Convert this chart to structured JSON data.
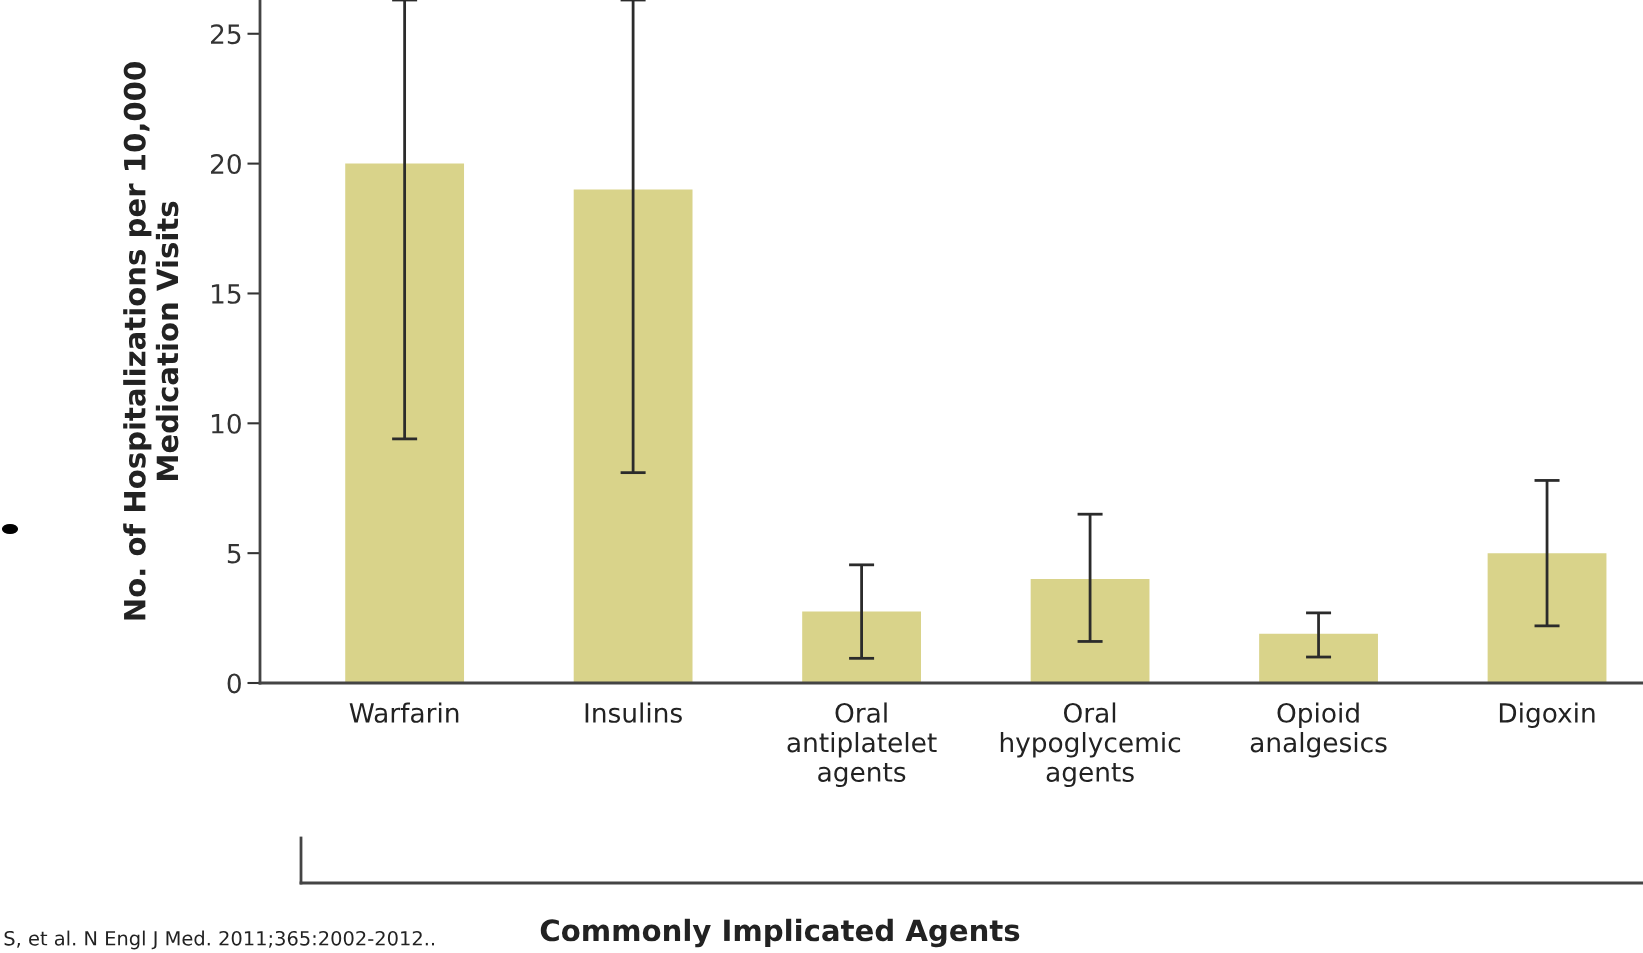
{
  "chart_data": {
    "type": "bar",
    "categories": [
      "Warfarin",
      "Insulins",
      "Oral\nantiplatelet\nagents",
      "Oral\nhypoglycemic\nagents",
      "Opioid\nanalgesics",
      "Digoxin"
    ],
    "values": [
      20.0,
      19.0,
      2.75,
      4.0,
      1.9,
      5.0
    ],
    "errors": [
      [
        9.4,
        26.3
      ],
      [
        8.1,
        26.3
      ],
      [
        0.95,
        4.55
      ],
      [
        1.6,
        6.5
      ],
      [
        1.0,
        2.7
      ],
      [
        2.2,
        7.8
      ]
    ],
    "color": "#d9d38a",
    "ylabel": "No. of Hospitalizations per 10,000\nMedication Visits",
    "xlabel": "Commonly Implicated Agents",
    "ylim": [
      0,
      26.3
    ],
    "yticks": [
      0,
      5,
      10,
      15,
      20,
      25
    ],
    "grid": false,
    "legend": false,
    "annotations": [
      "S, et al. N Engl J Med. 2011;365:2002-2012.."
    ]
  }
}
